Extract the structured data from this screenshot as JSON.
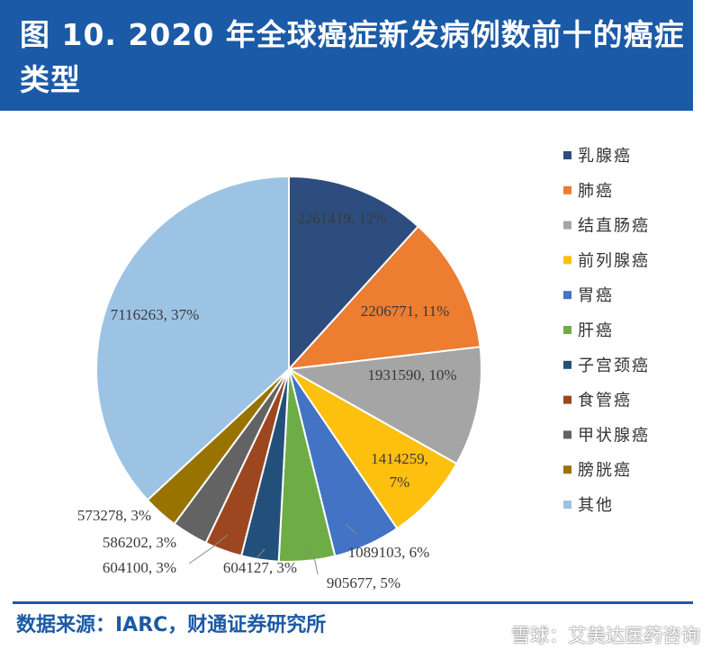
{
  "header": {
    "title": "图 10. 2020 年全球癌症新发病例数前十的癌症类型"
  },
  "footer": {
    "source": "数据来源：IARC，财通证券研究所",
    "watermark": "雪球：艾美达医药咨询"
  },
  "chart_data": {
    "type": "pie",
    "title": "",
    "legend_position": "right",
    "slices": [
      {
        "name": "乳腺癌",
        "value": 2261419,
        "percent_label": "12%",
        "label": "2261419, 12%",
        "color": "#2e4d7f"
      },
      {
        "name": "肺癌",
        "value": 2206771,
        "percent_label": "11%",
        "label": "2206771, 11%",
        "color": "#ec7d31"
      },
      {
        "name": "结直肠癌",
        "value": 1931590,
        "percent_label": "10%",
        "label": "1931590, 10%",
        "color": "#a5a5a5"
      },
      {
        "name": "前列腺癌",
        "value": 1414259,
        "percent_label": "7%",
        "label_lines": [
          "1414259,",
          "7%"
        ],
        "color": "#fdc00f"
      },
      {
        "name": "胃癌",
        "value": 1089103,
        "percent_label": "6%",
        "label": "1089103, 6%",
        "color": "#4373c4"
      },
      {
        "name": "肝癌",
        "value": 905677,
        "percent_label": "5%",
        "label": "905677, 5%",
        "color": "#6ead46"
      },
      {
        "name": "子宫颈癌",
        "value": 604127,
        "percent_label": "3%",
        "label": "604127, 3%",
        "color": "#23507b"
      },
      {
        "name": "食管癌",
        "value": 604100,
        "percent_label": "3%",
        "label": "604100, 3%",
        "color": "#9d4720"
      },
      {
        "name": "甲状腺癌",
        "value": 586202,
        "percent_label": "3%",
        "label": "586202, 3%",
        "color": "#636363"
      },
      {
        "name": "膀胱癌",
        "value": 573278,
        "percent_label": "3%",
        "label": "573278, 3%",
        "color": "#987300"
      },
      {
        "name": "其他",
        "value": 7116263,
        "percent_label": "37%",
        "label": "7116263, 37%",
        "color": "#9cc2e4"
      }
    ]
  }
}
